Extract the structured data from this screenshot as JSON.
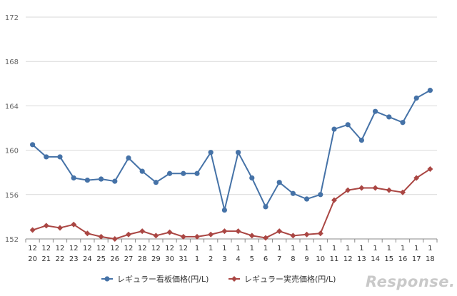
{
  "chart_data": {
    "type": "line",
    "title": "",
    "xlabel": "",
    "ylabel": "",
    "ylim": [
      152,
      172
    ],
    "yticks": [
      152,
      156,
      160,
      164,
      168,
      172
    ],
    "grid": "horizontal",
    "legend_position": "bottom",
    "categories": [
      {
        "month": "12",
        "day": "20"
      },
      {
        "month": "12",
        "day": "21"
      },
      {
        "month": "12",
        "day": "22"
      },
      {
        "month": "12",
        "day": "23"
      },
      {
        "month": "12",
        "day": "24"
      },
      {
        "month": "12",
        "day": "25"
      },
      {
        "month": "12",
        "day": "26"
      },
      {
        "month": "12",
        "day": "27"
      },
      {
        "month": "12",
        "day": "28"
      },
      {
        "month": "12",
        "day": "29"
      },
      {
        "month": "12",
        "day": "30"
      },
      {
        "month": "12",
        "day": "31"
      },
      {
        "month": "1",
        "day": "1"
      },
      {
        "month": "1",
        "day": "2"
      },
      {
        "month": "1",
        "day": "3"
      },
      {
        "month": "1",
        "day": "4"
      },
      {
        "month": "1",
        "day": "5"
      },
      {
        "month": "1",
        "day": "6"
      },
      {
        "month": "1",
        "day": "7"
      },
      {
        "month": "1",
        "day": "8"
      },
      {
        "month": "1",
        "day": "9"
      },
      {
        "month": "1",
        "day": "10"
      },
      {
        "month": "1",
        "day": "11"
      },
      {
        "month": "1",
        "day": "12"
      },
      {
        "month": "1",
        "day": "13"
      },
      {
        "month": "1",
        "day": "14"
      },
      {
        "month": "1",
        "day": "15"
      },
      {
        "month": "1",
        "day": "16"
      },
      {
        "month": "1",
        "day": "17"
      },
      {
        "month": "1",
        "day": "18"
      }
    ],
    "series": [
      {
        "name": "レギュラー看板価格(円/L)",
        "color": "#4572a7",
        "marker": "circle",
        "values": [
          160.5,
          159.4,
          159.4,
          157.5,
          157.3,
          157.4,
          157.2,
          159.3,
          158.1,
          157.1,
          157.9,
          157.9,
          157.9,
          159.8,
          154.6,
          159.8,
          157.5,
          154.9,
          157.1,
          156.1,
          155.6,
          156.0,
          161.9,
          162.3,
          160.9,
          163.5,
          163.0,
          162.5,
          164.7,
          165.4
        ]
      },
      {
        "name": "レギュラー実売価格(円/L)",
        "color": "#aa4643",
        "marker": "diamond",
        "values": [
          152.8,
          153.2,
          153.0,
          153.3,
          152.5,
          152.2,
          152.0,
          152.4,
          152.7,
          152.3,
          152.6,
          152.2,
          152.2,
          152.4,
          152.7,
          152.7,
          152.3,
          152.1,
          152.7,
          152.3,
          152.4,
          152.5,
          155.5,
          156.4,
          156.6,
          156.6,
          156.4,
          156.2,
          157.5,
          158.3
        ]
      }
    ]
  },
  "watermark": "Response."
}
